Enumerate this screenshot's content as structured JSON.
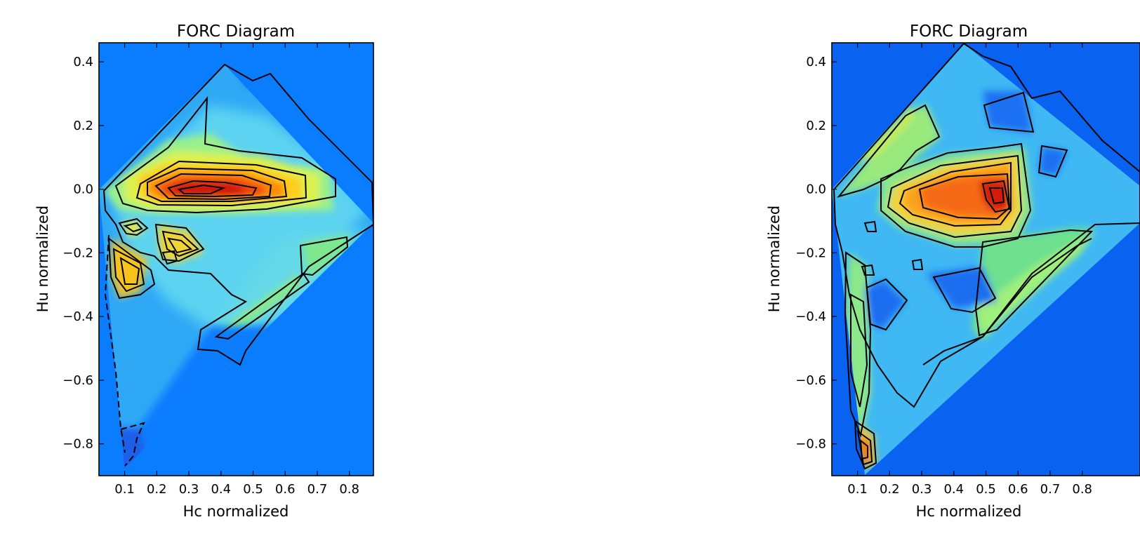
{
  "chart_data": [
    {
      "type": "heatmap",
      "title": "FORC Diagram",
      "xlabel": "Hc normalized",
      "ylabel": "Hu normalized",
      "xlim": [
        0.02,
        0.875
      ],
      "ylim": [
        -0.9,
        0.46
      ],
      "xticks": [
        "0.1",
        "0.2",
        "0.3",
        "0.4",
        "0.5",
        "0.6",
        "0.7",
        "0.8"
      ],
      "yticks": [
        "0.4",
        "0.2",
        "0.0",
        "−0.2",
        "−0.4",
        "−0.6",
        "−0.8"
      ],
      "colormap": "jet",
      "background_color": "#0a7dff",
      "grid": false,
      "peak": {
        "x": 0.3,
        "y": -0.01
      },
      "valid_region": [
        [
          0.02,
          0.0
        ],
        [
          0.4,
          0.39
        ],
        [
          0.875,
          -0.1
        ],
        [
          0.1,
          -0.88
        ]
      ]
    },
    {
      "type": "heatmap",
      "title": "FORC Diagram",
      "xlabel": "Hc normalized",
      "ylabel": "Hu normalized",
      "xlim": [
        0.02,
        0.875
      ],
      "ylim": [
        -0.9,
        0.46
      ],
      "xticks": [
        "0.1",
        "0.2",
        "0.3",
        "0.4",
        "0.5",
        "0.6",
        "0.7",
        "0.8"
      ],
      "yticks": [
        "0.4",
        "0.2",
        "0.0",
        "−0.2",
        "−0.4",
        "−0.6",
        "−0.8"
      ],
      "colormap": "jet",
      "background_color": "#0a62f0",
      "grid": false,
      "peak": {
        "x": 0.53,
        "y": -0.02
      },
      "valid_region": [
        [
          0.02,
          0.0
        ],
        [
          0.42,
          0.44
        ],
        [
          0.875,
          -0.1
        ],
        [
          0.12,
          -0.89
        ]
      ]
    }
  ]
}
